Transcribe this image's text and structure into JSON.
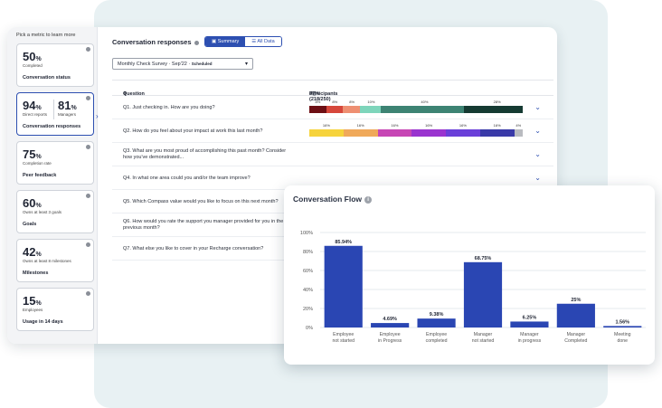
{
  "sidebar": {
    "title": "Pick a metric to learn more",
    "metrics": [
      {
        "value": "50",
        "unit": "%",
        "sub": "Completed",
        "label": "Conversation status"
      },
      {
        "value": "94",
        "unit": "%",
        "sub": "Direct reports",
        "value2": "81",
        "unit2": "%",
        "sub2": "Managers",
        "label": "Conversation responses"
      },
      {
        "value": "75",
        "unit": "%",
        "sub": "Completion rate",
        "label": "Peer feedback"
      },
      {
        "value": "60",
        "unit": "%",
        "sub": "Owns at least 3 goals",
        "label": "Goals"
      },
      {
        "value": "42",
        "unit": "%",
        "sub": "Owns at least 8 milestones",
        "label": "Milestones"
      },
      {
        "value": "15",
        "unit": "%",
        "sub": "Employees",
        "label": "Usage in 14 days"
      }
    ]
  },
  "header": {
    "title": "Conversation responses",
    "summary_tab": "Summary",
    "alldata_tab": "All Data",
    "summary_icon": "summary-icon",
    "alldata_icon": "list-icon"
  },
  "survey_select": {
    "value": "Monthly Check Survey · Sep'22 · ",
    "status": "Scheduled"
  },
  "table": {
    "col_question": "Question",
    "col_participants": "Participants",
    "participants_value": "87% (218/250)",
    "rows": [
      {
        "q": "Q1. Just checking in. How are you doing?",
        "bar": [
          {
            "pct": 8,
            "label": "8%",
            "color": "#6d0f14"
          },
          {
            "pct": 8,
            "label": "8%",
            "color": "#d6473b"
          },
          {
            "pct": 8,
            "label": "8%",
            "color": "#ee8f72"
          },
          {
            "pct": 10,
            "label": "10%",
            "color": "#7ed5bb"
          },
          {
            "pct": 40,
            "label": "40%",
            "color": "#3d8373"
          },
          {
            "pct": 28,
            "label": "28%",
            "color": "#153a32"
          }
        ]
      },
      {
        "q": "Q2. How do you feel about your impact at work this last month?",
        "bar": [
          {
            "pct": 16,
            "label": "16%",
            "color": "#f6d33c"
          },
          {
            "pct": 16,
            "label": "16%",
            "color": "#f0a95a"
          },
          {
            "pct": 16,
            "label": "16%",
            "color": "#c746b5"
          },
          {
            "pct": 16,
            "label": "16%",
            "color": "#9a34cf"
          },
          {
            "pct": 16,
            "label": "16%",
            "color": "#6a3fd9"
          },
          {
            "pct": 16,
            "label": "16%",
            "color": "#3a3aa8"
          },
          {
            "pct": 4,
            "label": "4%",
            "color": "#b9bbc0"
          }
        ]
      },
      {
        "q": "Q3. What are you most proud of accomplishing this past month? Consider how you've demonstrated...",
        "tall": true
      },
      {
        "q": "Q4. In what one area could you and/or the team improve?"
      },
      {
        "q": "Q5. Which Compass value would you like to focus on this next month?"
      },
      {
        "q": "Q6. How would you rate the support you manager provided for you in the previous month?",
        "tall": true
      },
      {
        "q": "Q7. What else you like to cover in your Recharge conversation?"
      }
    ]
  },
  "flow": {
    "title": "Conversation Flow",
    "info_icon": "info-icon",
    "bar_color": "#2a46b3"
  },
  "chart_data": {
    "type": "bar",
    "title": "Conversation Flow",
    "categories": [
      "Employee not started",
      "Employee in Progress",
      "Employee completed",
      "Manager not started",
      "Manager in progress",
      "Manager Completed",
      "Meeting done"
    ],
    "values": [
      85.94,
      4.69,
      9.38,
      68.75,
      6.25,
      25,
      1.56
    ],
    "value_labels": [
      "85.94%",
      "4.69%",
      "9.38%",
      "68.75%",
      "6.25%",
      "25%",
      "1.56%"
    ],
    "ylim": [
      0,
      100
    ],
    "yticks": [
      "0%",
      "20%",
      "40%",
      "60%",
      "80%",
      "100%"
    ],
    "grid": true
  }
}
